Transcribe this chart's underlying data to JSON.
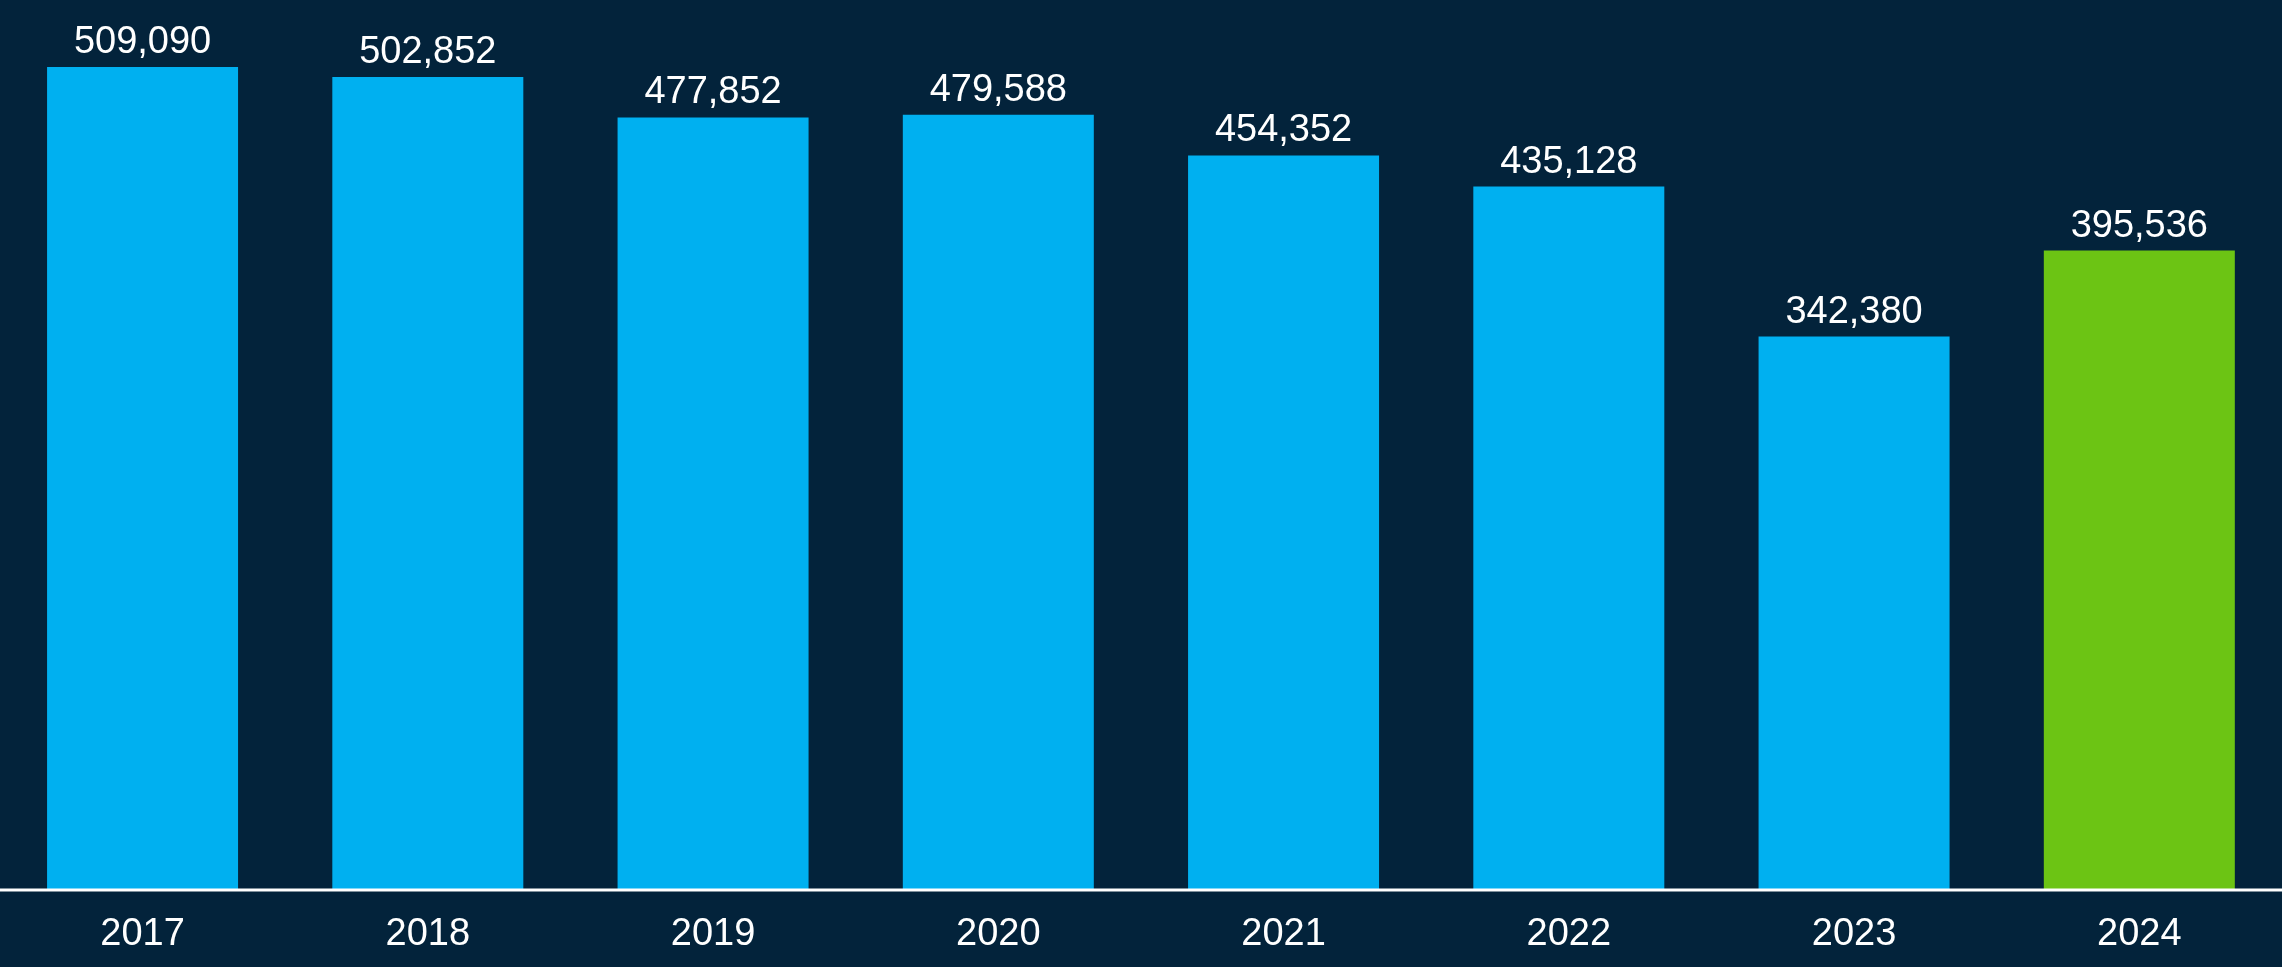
{
  "chart_data": {
    "type": "bar",
    "categories": [
      "2017",
      "2018",
      "2019",
      "2020",
      "2021",
      "2022",
      "2023",
      "2024"
    ],
    "values": [
      509090,
      502852,
      477852,
      479588,
      454352,
      435128,
      342380,
      395536
    ],
    "value_labels": [
      "509,090",
      "502,852",
      "477,852",
      "479,588",
      "454,352",
      "435,128",
      "342,380",
      "395,536"
    ],
    "colors": [
      "#00b0f0",
      "#00b0f0",
      "#00b0f0",
      "#00b0f0",
      "#00b0f0",
      "#00b0f0",
      "#00b0f0",
      "#6cc414"
    ]
  }
}
